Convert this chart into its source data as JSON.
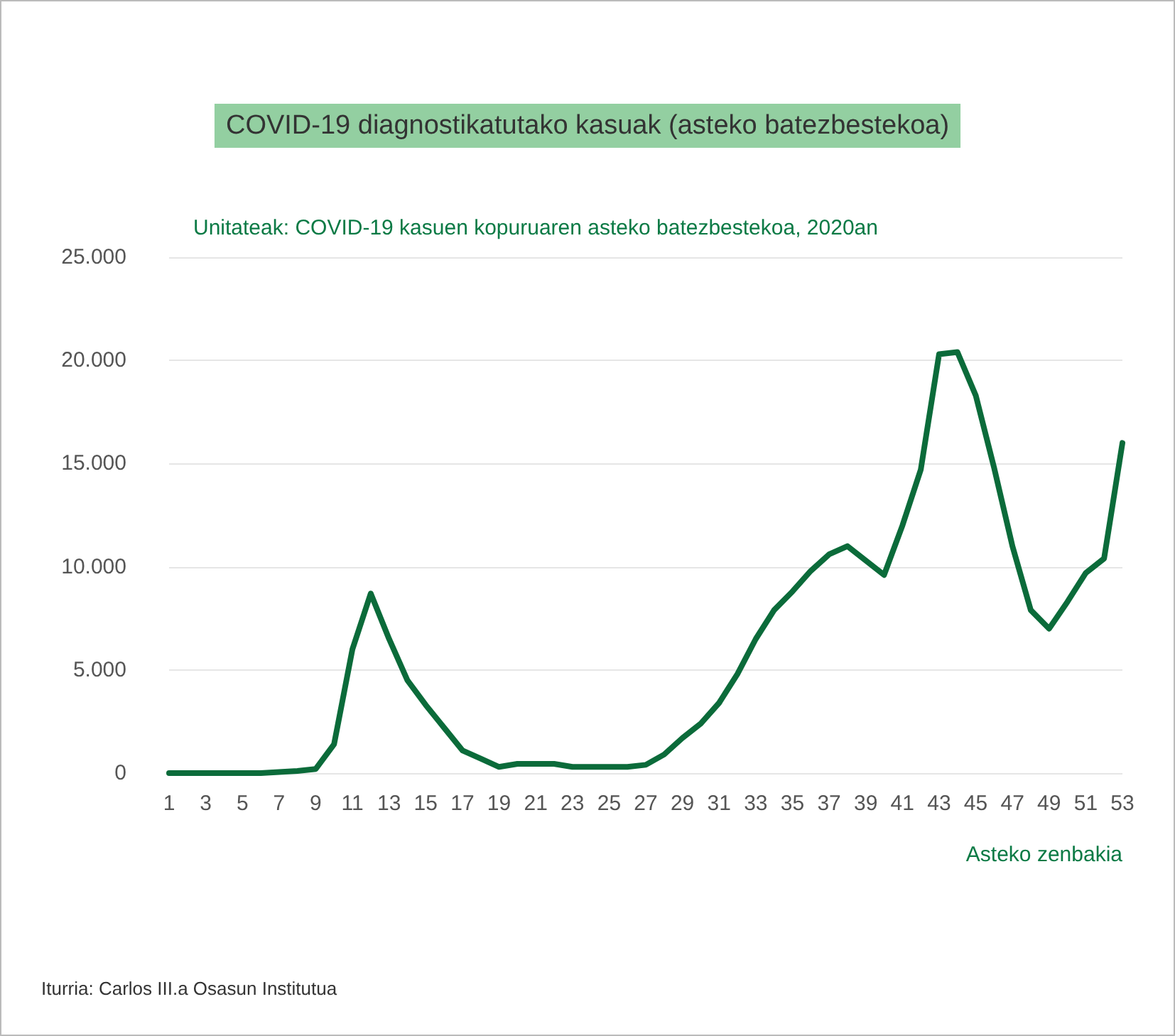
{
  "chart_data": {
    "type": "line",
    "title": "COVID-19 diagnostikatutako kasuak (asteko batezbestekoa)",
    "subtitle": "Unitateak: COVID-19 kasuen kopuruaren asteko batezbestekoa, 2020an",
    "xlabel": "Asteko zenbakia",
    "annotations": [
      "Iturria: Carlos III.a Osasun Institutua"
    ],
    "x": [
      1,
      2,
      3,
      4,
      5,
      6,
      7,
      8,
      9,
      10,
      11,
      12,
      13,
      14,
      15,
      16,
      17,
      18,
      19,
      20,
      21,
      22,
      23,
      24,
      25,
      26,
      27,
      28,
      29,
      30,
      31,
      32,
      33,
      34,
      35,
      36,
      37,
      38,
      39,
      40,
      41,
      42,
      43,
      44,
      45,
      46,
      47,
      48,
      49,
      50,
      51,
      52,
      53
    ],
    "series": [
      {
        "color": "#0b6b3a",
        "values": [
          0,
          0,
          0,
          0,
          0,
          0,
          50,
          100,
          200,
          1400,
          6000,
          8700,
          6500,
          4500,
          3300,
          2200,
          1100,
          700,
          300,
          450,
          450,
          450,
          300,
          300,
          300,
          300,
          400,
          900,
          1700,
          2400,
          3400,
          4800,
          6500,
          7900,
          8800,
          9800,
          10600,
          11000,
          10300,
          9600,
          12000,
          14700,
          20300,
          20400,
          18300,
          14800,
          11000,
          7900,
          7000,
          8300,
          9700,
          10400,
          16000
        ]
      }
    ],
    "xlim": [
      1,
      53
    ],
    "xticks": [
      1,
      3,
      5,
      7,
      9,
      11,
      13,
      15,
      17,
      19,
      21,
      23,
      25,
      27,
      29,
      31,
      33,
      35,
      37,
      39,
      41,
      43,
      45,
      47,
      49,
      51,
      53
    ],
    "ylim": [
      0,
      25000
    ],
    "yticks": [
      {
        "value": 0,
        "label": "0"
      },
      {
        "value": 5000,
        "label": "5.000"
      },
      {
        "value": 10000,
        "label": "10.000"
      },
      {
        "value": 15000,
        "label": "15.000"
      },
      {
        "value": 20000,
        "label": "20.000"
      },
      {
        "value": 25000,
        "label": "25.000"
      }
    ],
    "grid": "y",
    "marker": "none",
    "line_style": "solid"
  }
}
